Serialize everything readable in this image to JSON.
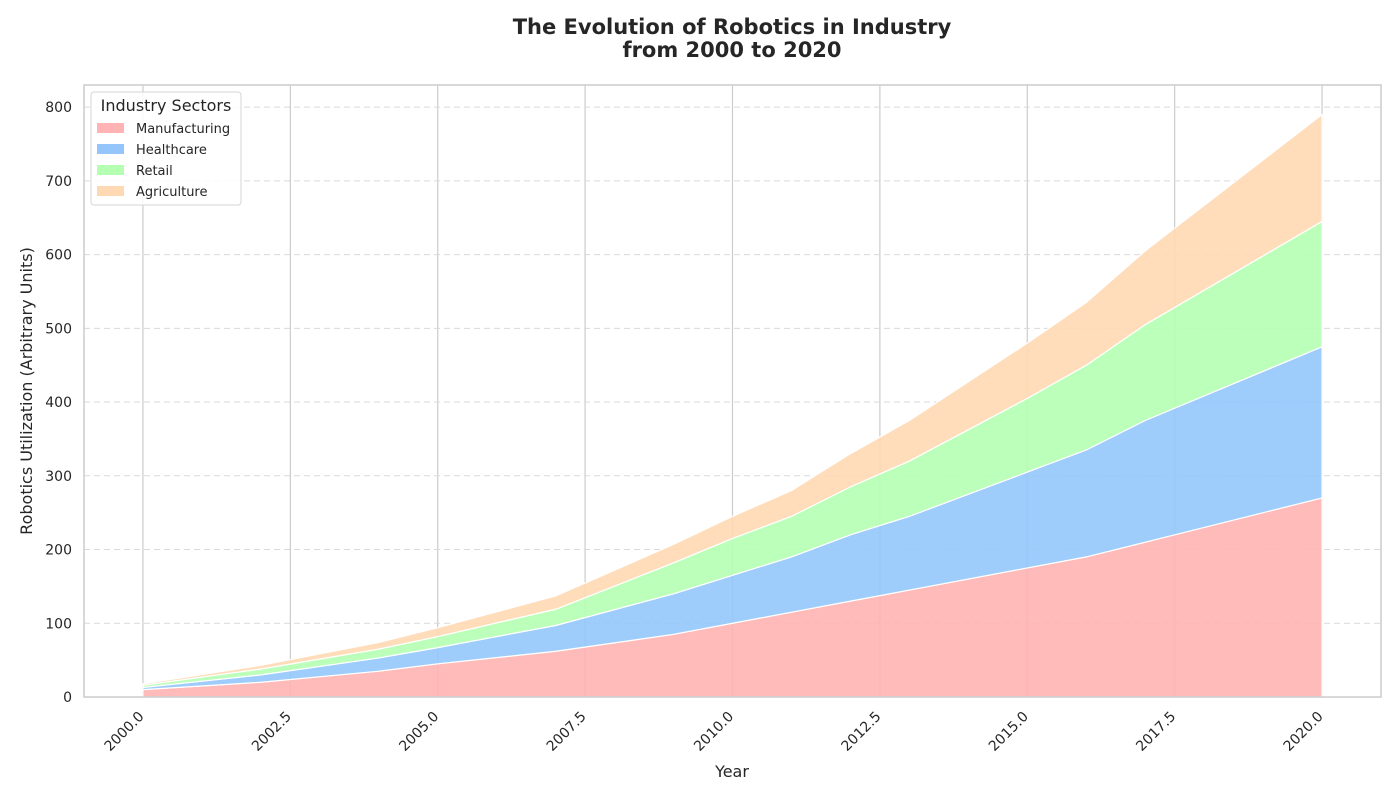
{
  "chart_data": {
    "type": "area",
    "stacked": true,
    "title_lines": [
      "The Evolution of Robotics in Industry",
      "from 2000 to 2020"
    ],
    "xlabel": "Year",
    "ylabel": "Robotics Utilization (Arbitrary Units)",
    "x": [
      2000,
      2002,
      2004,
      2005,
      2007,
      2009,
      2010,
      2011,
      2012,
      2013,
      2015,
      2016,
      2017,
      2020
    ],
    "x_ticks": [
      "2000.0",
      "2002.5",
      "2005.0",
      "2007.5",
      "2010.0",
      "2012.5",
      "2015.0",
      "2017.5",
      "2020.0"
    ],
    "y_ticks": [
      "0",
      "100",
      "200",
      "300",
      "400",
      "500",
      "600",
      "700",
      "800"
    ],
    "xlim": [
      1999,
      2021
    ],
    "ylim": [
      0,
      830
    ],
    "series": [
      {
        "name": "Manufacturing",
        "color": "#ffb3b3",
        "values": [
          10,
          20,
          35,
          45,
          62,
          85,
          100,
          115,
          130,
          145,
          175,
          190,
          210,
          270
        ]
      },
      {
        "name": "Healthcare",
        "color": "#94c6fb",
        "values": [
          3,
          10,
          18,
          22,
          35,
          55,
          65,
          75,
          90,
          100,
          130,
          145,
          165,
          205
        ]
      },
      {
        "name": "Retail",
        "color": "#b5ffb3",
        "values": [
          3,
          8,
          12,
          15,
          22,
          42,
          50,
          55,
          65,
          75,
          100,
          115,
          130,
          170
        ]
      },
      {
        "name": "Agriculture",
        "color": "#ffd9b3",
        "values": [
          2,
          5,
          9,
          12,
          18,
          25,
          30,
          35,
          45,
          55,
          75,
          85,
          100,
          145
        ]
      }
    ],
    "legend_title": "Industry Sectors",
    "legend_position": "top-left",
    "grid": {
      "x": "solid",
      "y": "dashed"
    }
  }
}
